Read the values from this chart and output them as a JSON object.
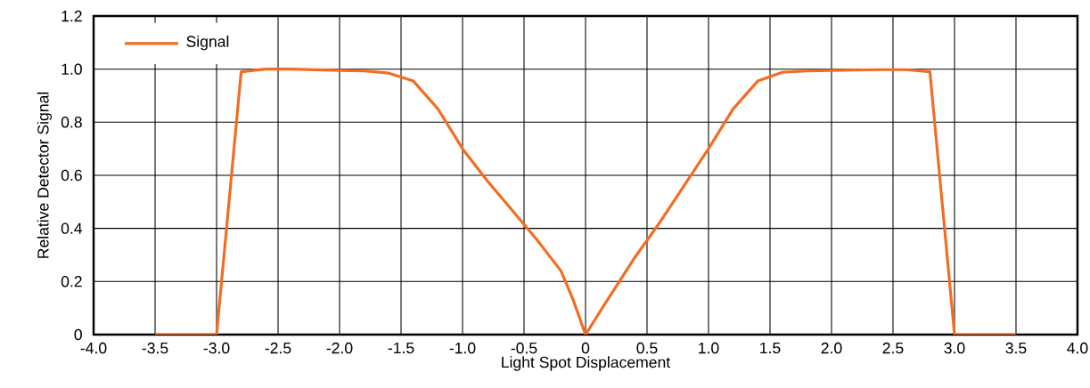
{
  "chart_data": {
    "type": "line",
    "xlabel": "Light Spot Displacement",
    "ylabel": "Relative Detector Signal",
    "x": [
      -3.5,
      -3.0,
      -2.8,
      -2.6,
      -2.4,
      -2.0,
      -1.8,
      -1.6,
      -1.4,
      -1.2,
      -1.0,
      -0.8,
      -0.6,
      -0.4,
      -0.2,
      -0.1,
      0,
      0.15,
      0.4,
      0.6,
      0.8,
      1.0,
      1.2,
      1.4,
      1.6,
      1.8,
      2.0,
      2.4,
      2.6,
      2.8,
      3.0,
      3.5
    ],
    "series": [
      {
        "name": "Signal",
        "color": "#f26d21",
        "values": [
          0,
          0,
          0.99,
          1.0,
          1.0,
          0.995,
          0.993,
          0.985,
          0.955,
          0.85,
          0.7,
          0.58,
          0.47,
          0.36,
          0.24,
          0.13,
          0,
          0.11,
          0.29,
          0.42,
          0.56,
          0.7,
          0.85,
          0.955,
          0.988,
          0.993,
          0.995,
          0.998,
          0.998,
          0.99,
          0,
          0
        ]
      }
    ],
    "xlim": [
      -4,
      4
    ],
    "ylim": [
      0,
      1.2
    ],
    "xticks": [
      {
        "value": -4,
        "label": "-4.0"
      },
      {
        "value": -3.5,
        "label": "-3.5"
      },
      {
        "value": -3,
        "label": "-3.0"
      },
      {
        "value": -2.5,
        "label": "-2.5"
      },
      {
        "value": -2,
        "label": "-2.0"
      },
      {
        "value": -1.5,
        "label": "-1.5"
      },
      {
        "value": -1,
        "label": "-1.0"
      },
      {
        "value": -0.5,
        "label": "-0.5"
      },
      {
        "value": 0,
        "label": "0"
      },
      {
        "value": 0.5,
        "label": "0.5"
      },
      {
        "value": 1,
        "label": "1.0"
      },
      {
        "value": 1.5,
        "label": "1.5"
      },
      {
        "value": 2,
        "label": "2.0"
      },
      {
        "value": 2.5,
        "label": "2.5"
      },
      {
        "value": 3,
        "label": "3.0"
      },
      {
        "value": 3.5,
        "label": "3.5"
      },
      {
        "value": 4,
        "label": "4.0"
      }
    ],
    "yticks": [
      0,
      0.2,
      0.4,
      0.6,
      0.8,
      {
        "value": 1,
        "label": "1.0"
      },
      1.2
    ],
    "grid": true,
    "legend": "top left",
    "marker": "none",
    "line_style": "solid"
  }
}
